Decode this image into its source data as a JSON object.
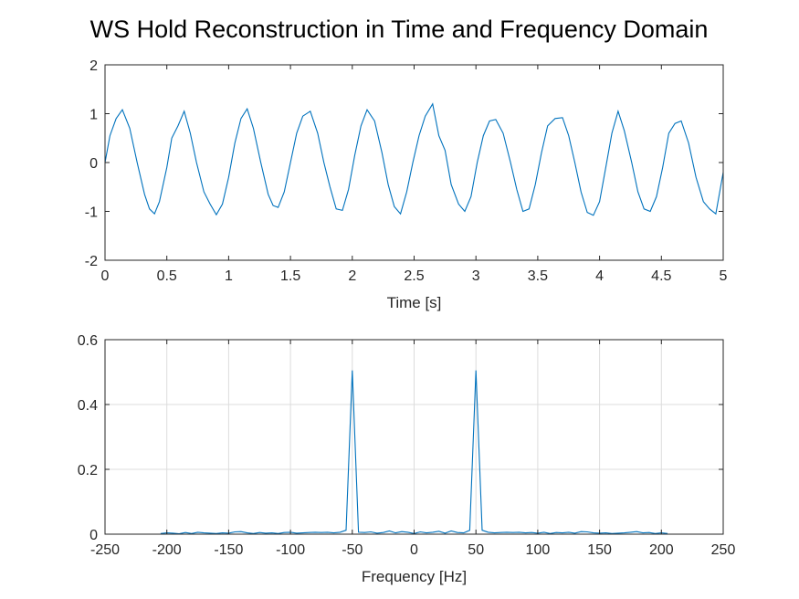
{
  "figure": {
    "title": "WS Hold Reconstruction in Time and Frequency Domain"
  },
  "chart_data": [
    {
      "type": "line",
      "id": "time",
      "xlabel": "Time [s]",
      "ylabel": "",
      "xlim": [
        0,
        5
      ],
      "ylim": [
        -2,
        2
      ],
      "xticks": [
        0,
        0.5,
        1,
        1.5,
        2,
        2.5,
        3,
        3.5,
        4,
        4.5,
        5
      ],
      "xtick_labels": [
        "0",
        "0.5",
        "1",
        "1.5",
        "2",
        "2.5",
        "3",
        "3.5",
        "4",
        "4.5",
        "5"
      ],
      "yticks": [
        -2,
        -1,
        0,
        1,
        2
      ],
      "ytick_labels": [
        "-2",
        "-1",
        "0",
        "1",
        "2"
      ],
      "grid": false,
      "color": "#0072bd",
      "series": [
        {
          "x": [
            0,
            0.04,
            0.09,
            0.14,
            0.2,
            0.26,
            0.32,
            0.36,
            0.4,
            0.44,
            0.5,
            0.54,
            0.59,
            0.64,
            0.69,
            0.74,
            0.8,
            0.85,
            0.9,
            0.95,
            1.0,
            1.05,
            1.1,
            1.15,
            1.2,
            1.26,
            1.32,
            1.36,
            1.4,
            1.45,
            1.5,
            1.55,
            1.6,
            1.66,
            1.72,
            1.77,
            1.82,
            1.87,
            1.92,
            1.97,
            2.02,
            2.07,
            2.12,
            2.18,
            2.24,
            2.29,
            2.34,
            2.39,
            2.44,
            2.49,
            2.54,
            2.59,
            2.65,
            2.7,
            2.75,
            2.8,
            2.86,
            2.91,
            2.96,
            3.01,
            3.06,
            3.11,
            3.16,
            3.22,
            3.28,
            3.33,
            3.38,
            3.43,
            3.48,
            3.53,
            3.58,
            3.64,
            3.7,
            3.75,
            3.8,
            3.85,
            3.9,
            3.95,
            4.0,
            4.05,
            4.1,
            4.15,
            4.2,
            4.26,
            4.31,
            4.36,
            4.41,
            4.46,
            4.51,
            4.56,
            4.61,
            4.66,
            4.72,
            4.78,
            4.84,
            4.89,
            4.94,
            5.0
          ],
          "y": [
            0.0,
            0.55,
            0.9,
            1.08,
            0.7,
            0.0,
            -0.65,
            -0.95,
            -1.05,
            -0.8,
            -0.1,
            0.5,
            0.75,
            1.05,
            0.6,
            0.0,
            -0.6,
            -0.85,
            -1.07,
            -0.85,
            -0.3,
            0.4,
            0.9,
            1.1,
            0.7,
            0.0,
            -0.65,
            -0.88,
            -0.92,
            -0.6,
            0.0,
            0.6,
            0.95,
            1.05,
            0.6,
            0.0,
            -0.5,
            -0.95,
            -0.98,
            -0.55,
            0.15,
            0.75,
            1.08,
            0.85,
            0.2,
            -0.45,
            -0.9,
            -1.05,
            -0.6,
            0.0,
            0.55,
            0.95,
            1.2,
            0.55,
            0.25,
            -0.45,
            -0.85,
            -1.0,
            -0.7,
            0.0,
            0.55,
            0.85,
            0.88,
            0.6,
            0.0,
            -0.55,
            -1.0,
            -0.95,
            -0.45,
            0.2,
            0.75,
            0.9,
            0.92,
            0.55,
            0.0,
            -0.6,
            -1.02,
            -1.08,
            -0.8,
            -0.1,
            0.6,
            1.05,
            0.65,
            0.0,
            -0.6,
            -0.95,
            -1.0,
            -0.7,
            -0.1,
            0.6,
            0.8,
            0.85,
            0.4,
            -0.3,
            -0.8,
            -0.95,
            -1.05,
            -0.2
          ]
        }
      ]
    },
    {
      "type": "line",
      "id": "freq",
      "xlabel": "Frequency [Hz]",
      "ylabel": "",
      "xlim": [
        -250,
        250
      ],
      "ylim": [
        0,
        0.6
      ],
      "xticks": [
        -250,
        -200,
        -150,
        -100,
        -50,
        0,
        50,
        100,
        150,
        200,
        250
      ],
      "xtick_labels": [
        "-250",
        "-200",
        "-150",
        "-100",
        "-50",
        "0",
        "50",
        "100",
        "150",
        "200",
        "250"
      ],
      "yticks": [
        0,
        0.2,
        0.4,
        0.6
      ],
      "ytick_labels": [
        "0",
        "0.2",
        "0.4",
        "0.6"
      ],
      "grid": true,
      "color": "#0072bd",
      "series": [
        {
          "x": [
            -205,
            -200,
            -195,
            -190,
            -185,
            -180,
            -175,
            -170,
            -165,
            -160,
            -155,
            -150,
            -145,
            -140,
            -135,
            -130,
            -125,
            -120,
            -115,
            -110,
            -105,
            -100,
            -95,
            -90,
            -85,
            -80,
            -75,
            -70,
            -65,
            -60,
            -55,
            -50,
            -45,
            -40,
            -35,
            -30,
            -25,
            -20,
            -15,
            -10,
            -5,
            0,
            5,
            10,
            15,
            20,
            25,
            30,
            35,
            40,
            45,
            50,
            55,
            60,
            65,
            70,
            75,
            80,
            85,
            90,
            95,
            100,
            105,
            110,
            115,
            120,
            125,
            130,
            135,
            140,
            145,
            150,
            155,
            160,
            165,
            170,
            175,
            180,
            185,
            190,
            195,
            200,
            205
          ],
          "y": [
            0.002,
            0.004,
            0.003,
            0.001,
            0.005,
            0.002,
            0.006,
            0.004,
            0.003,
            0.002,
            0.004,
            0.003,
            0.007,
            0.008,
            0.004,
            0.002,
            0.005,
            0.003,
            0.004,
            0.002,
            0.005,
            0.006,
            0.003,
            0.004,
            0.005,
            0.006,
            0.005,
            0.006,
            0.004,
            0.006,
            0.012,
            0.505,
            0.006,
            0.005,
            0.007,
            0.003,
            0.005,
            0.01,
            0.004,
            0.008,
            0.006,
            0.002,
            0.007,
            0.004,
            0.006,
            0.009,
            0.003,
            0.01,
            0.005,
            0.004,
            0.012,
            0.505,
            0.012,
            0.006,
            0.004,
            0.005,
            0.006,
            0.005,
            0.006,
            0.004,
            0.005,
            0.003,
            0.006,
            0.002,
            0.005,
            0.004,
            0.006,
            0.003,
            0.008,
            0.007,
            0.004,
            0.003,
            0.004,
            0.002,
            0.003,
            0.004,
            0.006,
            0.008,
            0.004,
            0.005,
            0.002,
            0.004,
            0.002
          ]
        }
      ]
    }
  ]
}
